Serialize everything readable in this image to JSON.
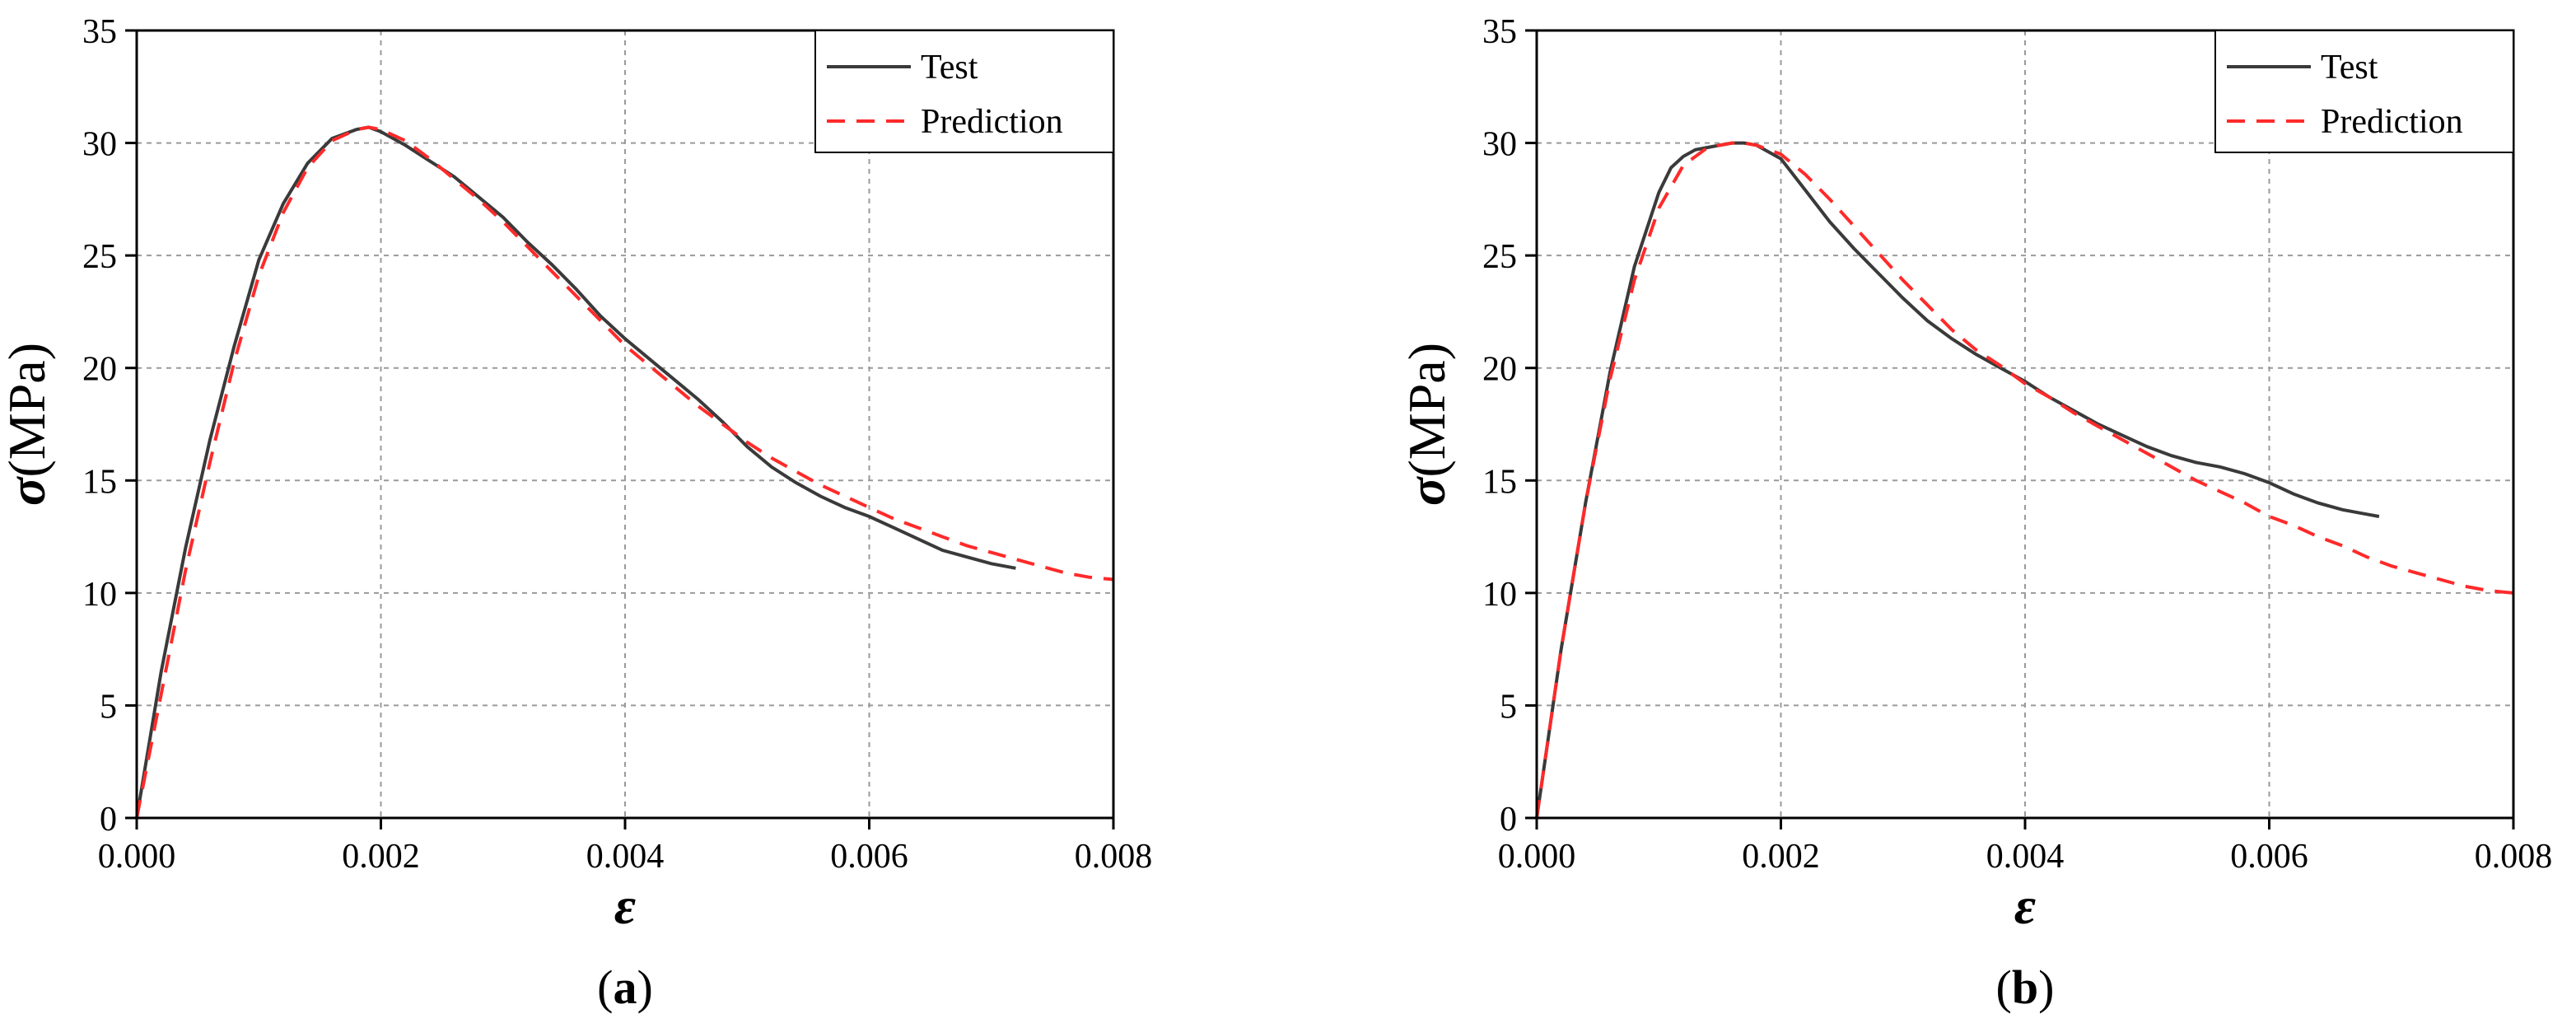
{
  "chart_data": [
    {
      "type": "line",
      "panel_label": "a",
      "xlabel": "ε",
      "ylabel_symbol": "σ",
      "ylabel_unit": "(MPa)",
      "xlim": [
        0,
        0.008
      ],
      "ylim": [
        0,
        35
      ],
      "xticks": [
        0,
        0.002,
        0.004,
        0.006,
        0.008
      ],
      "xtick_labels": [
        "0.000",
        "0.002",
        "0.004",
        "0.006",
        "0.008"
      ],
      "yticks": [
        0,
        5,
        10,
        15,
        20,
        25,
        30,
        35
      ],
      "ytick_labels": [
        "0",
        "5",
        "10",
        "15",
        "20",
        "25",
        "30",
        "35"
      ],
      "grid": true,
      "legend_position": "top-right",
      "series": [
        {
          "name": "Test",
          "style": "solid",
          "color": "#3a3a3a",
          "x": [
            0,
            0.0002,
            0.0004,
            0.0006,
            0.0008,
            0.001,
            0.0012,
            0.0014,
            0.0016,
            0.0018,
            0.0019,
            0.002,
            0.0022,
            0.0024,
            0.0026,
            0.0028,
            0.003,
            0.0032,
            0.0034,
            0.0036,
            0.0038,
            0.004,
            0.0042,
            0.0044,
            0.0046,
            0.0048,
            0.005,
            0.0052,
            0.0054,
            0.0056,
            0.0058,
            0.006,
            0.0062,
            0.0064,
            0.0066,
            0.0068,
            0.007,
            0.0072
          ],
          "y": [
            0,
            6.5,
            12,
            16.8,
            21,
            24.8,
            27.3,
            29.1,
            30.2,
            30.6,
            30.7,
            30.5,
            29.9,
            29.2,
            28.5,
            27.6,
            26.7,
            25.6,
            24.6,
            23.5,
            22.3,
            21.3,
            20.4,
            19.5,
            18.6,
            17.6,
            16.5,
            15.6,
            14.9,
            14.3,
            13.8,
            13.4,
            12.9,
            12.4,
            11.9,
            11.6,
            11.3,
            11.1
          ]
        },
        {
          "name": "Prediction",
          "style": "dashed",
          "color": "#ff2a2a",
          "x": [
            0,
            0.0002,
            0.0004,
            0.0006,
            0.0008,
            0.001,
            0.0012,
            0.0014,
            0.0016,
            0.0018,
            0.0019,
            0.002,
            0.0022,
            0.0024,
            0.0026,
            0.0028,
            0.003,
            0.0032,
            0.0034,
            0.0036,
            0.0038,
            0.004,
            0.0042,
            0.0044,
            0.0046,
            0.0048,
            0.005,
            0.0052,
            0.0054,
            0.0056,
            0.0058,
            0.006,
            0.0062,
            0.0064,
            0.0066,
            0.0068,
            0.007,
            0.0072,
            0.0074,
            0.0076,
            0.0078,
            0.008
          ],
          "y": [
            0,
            5.5,
            11,
            15.8,
            20.3,
            24.1,
            26.9,
            28.9,
            30.1,
            30.6,
            30.7,
            30.6,
            30.1,
            29.3,
            28.4,
            27.5,
            26.5,
            25.4,
            24.3,
            23.2,
            22.1,
            21.0,
            20.1,
            19.2,
            18.3,
            17.5,
            16.7,
            16.0,
            15.4,
            14.8,
            14.3,
            13.8,
            13.3,
            12.9,
            12.5,
            12.1,
            11.8,
            11.5,
            11.2,
            10.9,
            10.7,
            10.6
          ]
        }
      ]
    },
    {
      "type": "line",
      "panel_label": "b",
      "xlabel": "ε",
      "ylabel_symbol": "σ",
      "ylabel_unit": "(MPa)",
      "xlim": [
        0,
        0.008
      ],
      "ylim": [
        0,
        35
      ],
      "xticks": [
        0,
        0.002,
        0.004,
        0.006,
        0.008
      ],
      "xtick_labels": [
        "0.000",
        "0.002",
        "0.004",
        "0.006",
        "0.008"
      ],
      "yticks": [
        0,
        5,
        10,
        15,
        20,
        25,
        30,
        35
      ],
      "ytick_labels": [
        "0",
        "5",
        "10",
        "15",
        "20",
        "25",
        "30",
        "35"
      ],
      "grid": true,
      "legend_position": "top-right",
      "series": [
        {
          "name": "Test",
          "style": "solid",
          "color": "#3a3a3a",
          "x": [
            0,
            0.0002,
            0.0004,
            0.0006,
            0.0008,
            0.001,
            0.0011,
            0.0012,
            0.0013,
            0.0014,
            0.0016,
            0.0017,
            0.0018,
            0.002,
            0.0022,
            0.0024,
            0.0026,
            0.0028,
            0.003,
            0.0032,
            0.0034,
            0.0036,
            0.0038,
            0.004,
            0.0042,
            0.0044,
            0.0046,
            0.0048,
            0.005,
            0.0052,
            0.0054,
            0.0056,
            0.0058,
            0.006,
            0.0062,
            0.0064,
            0.0066,
            0.0068,
            0.0069
          ],
          "y": [
            0,
            7.5,
            14,
            19.8,
            24.5,
            27.8,
            28.9,
            29.4,
            29.7,
            29.8,
            30.0,
            30.0,
            29.9,
            29.3,
            27.9,
            26.5,
            25.3,
            24.2,
            23.1,
            22.1,
            21.3,
            20.6,
            20.0,
            19.4,
            18.7,
            18.1,
            17.5,
            17.0,
            16.5,
            16.1,
            15.8,
            15.6,
            15.3,
            14.9,
            14.4,
            14.0,
            13.7,
            13.5,
            13.4
          ]
        },
        {
          "name": "Prediction",
          "style": "dashed",
          "color": "#ff2a2a",
          "x": [
            0,
            0.0002,
            0.0004,
            0.0006,
            0.0008,
            0.001,
            0.0012,
            0.0014,
            0.0016,
            0.0017,
            0.0018,
            0.002,
            0.0022,
            0.0024,
            0.0026,
            0.0028,
            0.003,
            0.0032,
            0.0034,
            0.0036,
            0.0038,
            0.004,
            0.0042,
            0.0044,
            0.0046,
            0.0048,
            0.005,
            0.0052,
            0.0054,
            0.0056,
            0.0058,
            0.006,
            0.0062,
            0.0064,
            0.0066,
            0.0068,
            0.007,
            0.0072,
            0.0074,
            0.0076,
            0.0078,
            0.008
          ],
          "y": [
            0,
            7.5,
            14,
            19.5,
            23.9,
            27.1,
            29.0,
            29.8,
            30.0,
            30.0,
            29.9,
            29.5,
            28.6,
            27.5,
            26.3,
            25.1,
            23.9,
            22.8,
            21.7,
            20.8,
            20.1,
            19.3,
            18.7,
            18.0,
            17.4,
            16.8,
            16.2,
            15.6,
            15.0,
            14.5,
            14.0,
            13.4,
            13.0,
            12.5,
            12.1,
            11.6,
            11.2,
            10.9,
            10.6,
            10.3,
            10.1,
            10.0
          ]
        }
      ]
    }
  ]
}
